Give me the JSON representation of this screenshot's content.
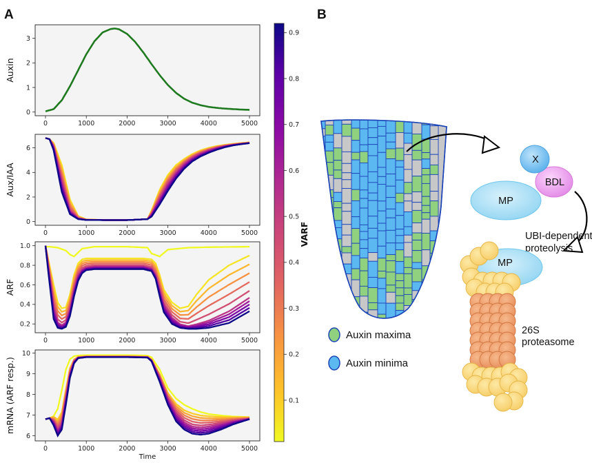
{
  "panels": {
    "a": "A",
    "b": "B"
  },
  "chart_data": {
    "type": "line",
    "x_label": "Time",
    "x_range": [
      0,
      5000
    ],
    "x_ticks": [
      0,
      1000,
      2000,
      3000,
      4000,
      5000
    ],
    "subplots": [
      {
        "name": "auxin",
        "ylabel": "Auxin",
        "ylim": [
          -0.15,
          3.55
        ],
        "yticks": [
          0,
          1,
          2,
          3
        ],
        "line_color": "#1f7a1f",
        "curve": {
          "x": [
            0,
            200,
            400,
            600,
            800,
            1000,
            1200,
            1400,
            1600,
            1700,
            1800,
            2000,
            2200,
            2400,
            2600,
            2800,
            3000,
            3200,
            3400,
            3600,
            3800,
            4000,
            4200,
            4400,
            4600,
            4800,
            5000
          ],
          "y": [
            0.03,
            0.12,
            0.48,
            1.05,
            1.7,
            2.35,
            2.88,
            3.24,
            3.38,
            3.4,
            3.37,
            3.18,
            2.85,
            2.42,
            1.95,
            1.5,
            1.1,
            0.78,
            0.54,
            0.38,
            0.28,
            0.21,
            0.17,
            0.14,
            0.12,
            0.1,
            0.09
          ]
        }
      },
      {
        "name": "aux-iaa",
        "ylabel": "Aux/IAA",
        "ylim": [
          -0.3,
          7.1
        ],
        "yticks": [
          0,
          2,
          4,
          6
        ],
        "series": [
          {
            "varf": 0.05,
            "x": [
              0,
              100,
              200,
              400,
              600,
              800,
              1000,
              1500,
              2000,
              2500,
              2600,
              2800,
              3000,
              3200,
              3400,
              3600,
              3800,
              4000,
              4200,
              4400,
              4600,
              4800,
              5000
            ],
            "y": [
              6.8,
              6.7,
              6.4,
              4.6,
              1.8,
              0.45,
              0.18,
              0.12,
              0.12,
              0.2,
              0.9,
              2.6,
              3.8,
              4.6,
              5.1,
              5.5,
              5.8,
              6.0,
              6.15,
              6.25,
              6.33,
              6.4,
              6.45
            ]
          },
          {
            "varf": 0.5,
            "x": [
              0,
              100,
              200,
              400,
              600,
              800,
              1000,
              1500,
              2000,
              2500,
              2600,
              2800,
              3000,
              3200,
              3400,
              3600,
              3800,
              4000,
              4200,
              4400,
              4600,
              4800,
              5000
            ],
            "y": [
              6.8,
              6.7,
              6.1,
              3.3,
              0.9,
              0.25,
              0.14,
              0.12,
              0.12,
              0.2,
              0.6,
              1.9,
              3.1,
              4.0,
              4.7,
              5.2,
              5.55,
              5.8,
              6.0,
              6.15,
              6.25,
              6.33,
              6.4
            ]
          },
          {
            "varf": 0.92,
            "x": [
              0,
              100,
              200,
              400,
              600,
              800,
              1000,
              1500,
              2000,
              2500,
              2600,
              2800,
              3000,
              3200,
              3400,
              3600,
              3800,
              4000,
              4200,
              4400,
              4600,
              4800,
              5000
            ],
            "y": [
              6.8,
              6.7,
              5.8,
              2.4,
              0.6,
              0.2,
              0.13,
              0.12,
              0.12,
              0.2,
              0.4,
              1.4,
              2.5,
              3.5,
              4.3,
              4.9,
              5.3,
              5.6,
              5.85,
              6.05,
              6.2,
              6.3,
              6.38
            ]
          }
        ]
      },
      {
        "name": "arf",
        "ylabel": "ARF",
        "ylim": [
          0.11,
          1.04
        ],
        "yticks": [
          0.2,
          0.4,
          0.6,
          0.8,
          1.0
        ],
        "series": [
          {
            "varf": 0.01,
            "x": [
              0,
              100,
              300,
              500,
              600,
              700,
              900,
              1200,
              2000,
              2500,
              2600,
              2800,
              3000,
              3500,
              4000,
              5000
            ],
            "y": [
              0.99,
              0.99,
              0.98,
              0.95,
              0.91,
              0.89,
              0.97,
              0.99,
              0.99,
              0.98,
              0.92,
              0.89,
              0.96,
              0.98,
              0.985,
              0.99
            ]
          },
          {
            "varf": 0.05,
            "x": [
              0,
              50,
              200,
              300,
              400,
              500,
              600,
              700,
              800,
              900,
              1000,
              1200,
              1500,
              2000,
              2400,
              2600,
              2700,
              2800,
              2900,
              3100,
              3300,
              3500,
              3700,
              4000,
              4500,
              5000
            ],
            "y": [
              1.0,
              0.9,
              0.6,
              0.42,
              0.36,
              0.37,
              0.5,
              0.7,
              0.82,
              0.86,
              0.87,
              0.87,
              0.87,
              0.87,
              0.87,
              0.86,
              0.82,
              0.7,
              0.55,
              0.42,
              0.36,
              0.38,
              0.5,
              0.65,
              0.8,
              0.9
            ]
          },
          {
            "varf": 0.5,
            "x": [
              0,
              50,
              200,
              300,
              400,
              500,
              600,
              700,
              800,
              900,
              1000,
              1200,
              1500,
              2000,
              2400,
              2600,
              2700,
              2800,
              2900,
              3100,
              3300,
              3500,
              3700,
              4000,
              4500,
              5000
            ],
            "y": [
              1.0,
              0.85,
              0.38,
              0.22,
              0.19,
              0.22,
              0.35,
              0.55,
              0.7,
              0.76,
              0.78,
              0.79,
              0.79,
              0.79,
              0.79,
              0.77,
              0.7,
              0.55,
              0.4,
              0.27,
              0.2,
              0.18,
              0.2,
              0.24,
              0.34,
              0.48
            ]
          },
          {
            "varf": 0.92,
            "x": [
              0,
              50,
              200,
              300,
              400,
              500,
              600,
              700,
              800,
              900,
              1000,
              1200,
              1500,
              2000,
              2400,
              2600,
              2700,
              2800,
              2900,
              3100,
              3300,
              3500,
              3700,
              4000,
              4500,
              5000
            ],
            "y": [
              1.0,
              0.8,
              0.25,
              0.16,
              0.15,
              0.17,
              0.28,
              0.48,
              0.64,
              0.72,
              0.75,
              0.76,
              0.76,
              0.76,
              0.76,
              0.74,
              0.66,
              0.48,
              0.32,
              0.2,
              0.16,
              0.15,
              0.15,
              0.16,
              0.21,
              0.33
            ]
          }
        ]
      },
      {
        "name": "mrna",
        "ylabel": "mRNA (ARF resp.)",
        "ylim": [
          5.75,
          10.15
        ],
        "yticks": [
          6,
          7,
          8,
          9,
          10
        ],
        "series": [
          {
            "varf": 0.01,
            "x": [
              0,
              100,
              200,
              300,
              400,
              500,
              600,
              700,
              800,
              1000,
              1500,
              2000,
              2500,
              2600,
              2800,
              3000,
              3200,
              3400,
              3600,
              3800,
              4000,
              4300,
              4600,
              5000
            ],
            "y": [
              6.8,
              6.85,
              6.95,
              7.3,
              8.2,
              9.2,
              9.7,
              9.85,
              9.88,
              9.9,
              9.9,
              9.9,
              9.88,
              9.8,
              9.2,
              8.3,
              7.8,
              7.5,
              7.3,
              7.15,
              7.05,
              6.98,
              6.93,
              6.9
            ]
          },
          {
            "varf": 0.05,
            "x": [
              0,
              100,
              200,
              300,
              400,
              500,
              600,
              700,
              800,
              1000,
              1500,
              2000,
              2500,
              2600,
              2800,
              3000,
              3200,
              3400,
              3600,
              3800,
              4000,
              4300,
              4600,
              5000
            ],
            "y": [
              6.8,
              6.85,
              6.95,
              6.85,
              7.2,
              8.3,
              9.3,
              9.7,
              9.82,
              9.85,
              9.85,
              9.85,
              9.83,
              9.7,
              9.0,
              8.1,
              7.6,
              7.3,
              7.15,
              7.05,
              7.0,
              6.95,
              6.92,
              6.9
            ]
          },
          {
            "varf": 0.5,
            "x": [
              0,
              100,
              200,
              300,
              400,
              500,
              600,
              700,
              800,
              1000,
              1500,
              2000,
              2500,
              2600,
              2800,
              3000,
              3200,
              3400,
              3600,
              3800,
              4000,
              4300,
              4600,
              5000
            ],
            "y": [
              6.8,
              6.85,
              6.7,
              6.3,
              6.6,
              7.8,
              9.0,
              9.6,
              9.78,
              9.82,
              9.82,
              9.82,
              9.8,
              9.65,
              8.8,
              7.8,
              7.1,
              6.7,
              6.5,
              6.45,
              6.5,
              6.6,
              6.72,
              6.82
            ]
          },
          {
            "varf": 0.92,
            "x": [
              0,
              100,
              200,
              300,
              400,
              500,
              600,
              700,
              800,
              1000,
              1500,
              2000,
              2500,
              2600,
              2800,
              3000,
              3200,
              3400,
              3600,
              3800,
              4000,
              4300,
              4600,
              5000
            ],
            "y": [
              6.8,
              6.85,
              6.5,
              6.0,
              6.3,
              7.5,
              8.8,
              9.5,
              9.75,
              9.8,
              9.8,
              9.8,
              9.78,
              9.6,
              8.6,
              7.5,
              6.7,
              6.3,
              6.1,
              6.05,
              6.1,
              6.3,
              6.55,
              6.8
            ]
          }
        ]
      }
    ],
    "colorbar": {
      "label": "VARF",
      "range": [
        0.01,
        0.92
      ],
      "ticks": [
        0.1,
        0.2,
        0.3,
        0.4,
        0.5,
        0.6,
        0.7,
        0.8,
        0.9
      ],
      "tick_labels": [
        "0.1",
        "0.2",
        "0.3",
        "0.4",
        "0.5",
        "0.6",
        "0.7",
        "0.8",
        "0.9"
      ],
      "colormap": "plasma (reversed)"
    }
  },
  "diagram": {
    "legend": [
      {
        "label": "Auxin maxima",
        "color": "#8fd17f"
      },
      {
        "label": "Auxin minima",
        "color": "#5cb8f0"
      }
    ],
    "labels": {
      "x": "X",
      "bdl": "BDL",
      "mp_top": "MP",
      "mp_bottom": "MP",
      "proteolysis_1": "UBI-dependent",
      "proteolysis_2": "proteolysis",
      "proteasome_1": "26S",
      "proteasome_2": "proteasome"
    }
  }
}
